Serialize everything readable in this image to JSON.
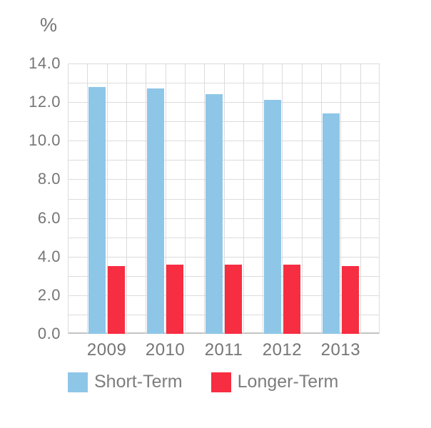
{
  "chart_data": {
    "type": "bar",
    "title": "",
    "ylabel": "%",
    "xlabel": "",
    "categories": [
      "2009",
      "2010",
      "2011",
      "2012",
      "2013"
    ],
    "series": [
      {
        "name": "Short-Term",
        "color": "#8EC6E8",
        "values": [
          12.8,
          12.7,
          12.4,
          12.1,
          11.4
        ]
      },
      {
        "name": "Longer-Term",
        "color": "#F72D41",
        "values": [
          3.5,
          3.6,
          3.6,
          3.6,
          3.5
        ]
      }
    ],
    "ylim": [
      0,
      14
    ],
    "ytick_step": 2,
    "ytick_labels": [
      "0.0",
      "2.0",
      "4.0",
      "6.0",
      "8.0",
      "10.0",
      "12.0",
      "14.0"
    ],
    "grid": true,
    "grid_minor_step": 1,
    "grid_columns": 16,
    "legend_position": "bottom",
    "colors": {
      "grid": "#dcdcdc",
      "axis": "#c2c2c2",
      "text": "#757575",
      "background": "#ffffff"
    }
  }
}
